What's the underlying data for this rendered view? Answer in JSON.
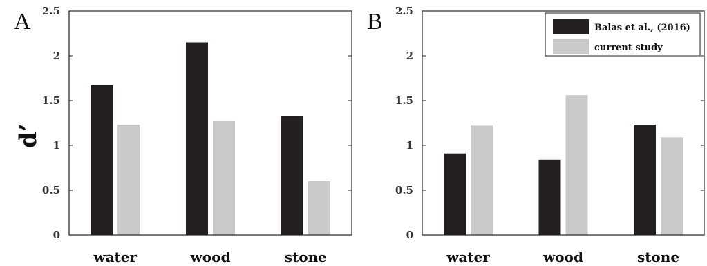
{
  "colors": {
    "series_1": "#231f20",
    "series_2": "#c8c9cb"
  },
  "ylabel": "d’",
  "panels": [
    {
      "letter": "A"
    },
    {
      "letter": "B"
    }
  ],
  "chart_data": [
    {
      "type": "bar",
      "panel": "A",
      "categories": [
        "water",
        "wood",
        "stone"
      ],
      "series": [
        {
          "name": "Balas et al., (2016)",
          "values": [
            1.67,
            2.15,
            1.33
          ]
        },
        {
          "name": "current study",
          "values": [
            1.23,
            1.27,
            0.6
          ]
        }
      ],
      "ylabel": "d’",
      "ylim": [
        0,
        2.5
      ],
      "yticks": [
        "0",
        "0.5",
        "1",
        "1.5",
        "2",
        "2.5"
      ],
      "grid": false
    },
    {
      "type": "bar",
      "panel": "B",
      "categories": [
        "water",
        "wood",
        "stone"
      ],
      "series": [
        {
          "name": "Balas et al., (2016)",
          "values": [
            0.91,
            0.84,
            1.23
          ]
        },
        {
          "name": "current study",
          "values": [
            1.22,
            1.56,
            1.09
          ]
        }
      ],
      "ylim": [
        0,
        2.5
      ],
      "yticks": [
        "0",
        "0.5",
        "1",
        "1.5",
        "2",
        "2.5"
      ],
      "legend": {
        "placement": "top-right"
      },
      "grid": false
    }
  ]
}
